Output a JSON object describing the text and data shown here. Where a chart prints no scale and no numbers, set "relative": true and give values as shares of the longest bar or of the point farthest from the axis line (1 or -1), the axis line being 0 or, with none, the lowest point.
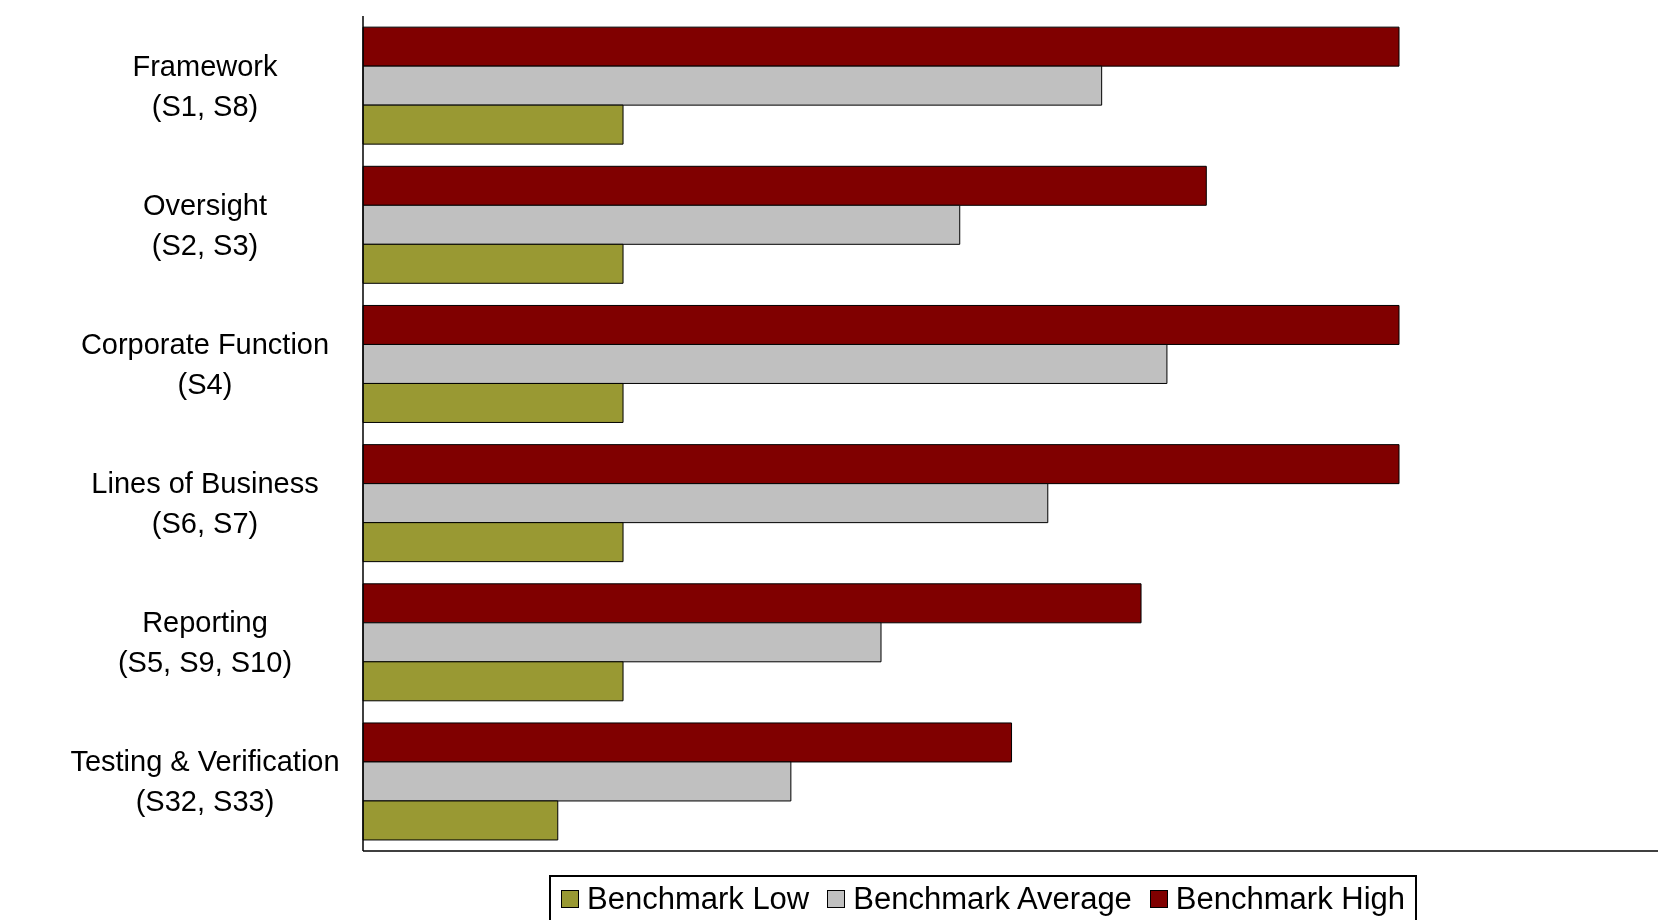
{
  "chart_data": {
    "type": "bar",
    "orientation": "horizontal",
    "relative": true,
    "categories": [
      "Framework\n(S1, S8)",
      "Oversight\n(S2, S3)",
      "Corporate Function\n(S4)",
      "Lines of Business\n(S6, S7)",
      "Reporting\n(S5, S9, S10)",
      "Testing & Verification\n(S32, S33)"
    ],
    "series": [
      {
        "name": "Benchmark Low",
        "color": "#999933",
        "values": [
          0.251,
          0.251,
          0.251,
          0.251,
          0.251,
          0.188
        ]
      },
      {
        "name": "Benchmark Average",
        "color": "#c0c0c0",
        "values": [
          0.713,
          0.576,
          0.776,
          0.661,
          0.5,
          0.413
        ]
      },
      {
        "name": "Benchmark High",
        "color": "#800000",
        "values": [
          1,
          0.814,
          1,
          1,
          0.751,
          0.626
        ]
      }
    ],
    "legend": "bottom",
    "grid": false
  }
}
